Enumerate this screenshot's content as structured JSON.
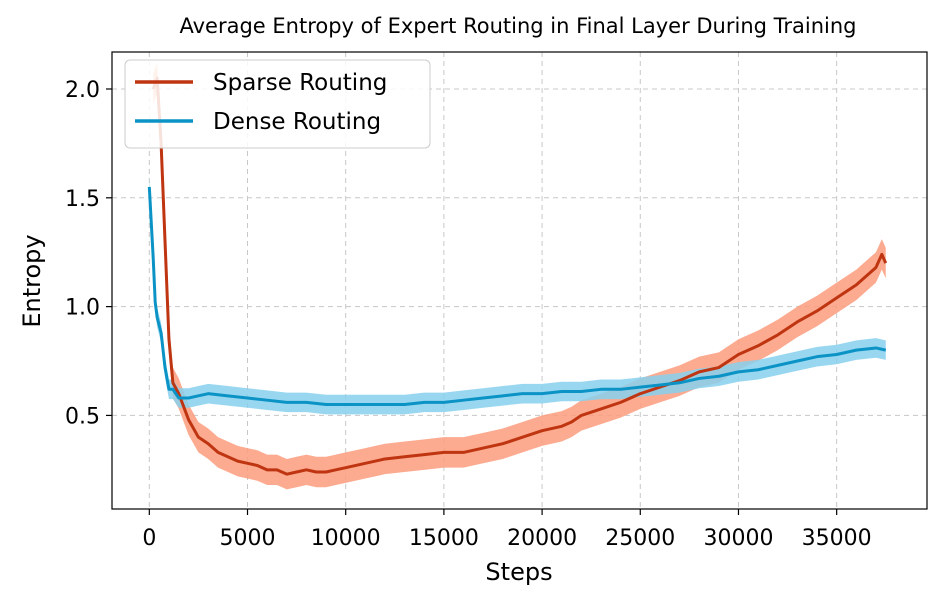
{
  "chart_data": {
    "type": "line",
    "title": "Average Entropy of Expert Routing in Final Layer During Training",
    "xlabel": "Steps",
    "ylabel": "Entropy",
    "xlim": [
      -1900,
      39600
    ],
    "ylim": [
      0.07,
      2.17
    ],
    "xticks": [
      0,
      5000,
      10000,
      15000,
      20000,
      25000,
      30000,
      35000
    ],
    "yticks": [
      0.5,
      1.0,
      1.5,
      2.0
    ],
    "xtick_labels": [
      "0",
      "5000",
      "10000",
      "15000",
      "20000",
      "25000",
      "30000",
      "35000"
    ],
    "ytick_labels": [
      "0.5",
      "1.0",
      "1.5",
      "2.0"
    ],
    "grid": true,
    "legend_position": "top-left",
    "series": [
      {
        "name": "Sparse Routing",
        "line_color": "#bf3511",
        "band_color": "#fc9c7c",
        "x": [
          200,
          400,
          600,
          800,
          1000,
          1200,
          1500,
          2000,
          2500,
          3000,
          3500,
          4000,
          4500,
          5000,
          5500,
          6000,
          6500,
          7000,
          7500,
          8000,
          8500,
          9000,
          9500,
          10000,
          11000,
          12000,
          13000,
          14000,
          15000,
          16000,
          17000,
          18000,
          19000,
          20000,
          21000,
          21500,
          22000,
          23000,
          24000,
          25000,
          26000,
          27000,
          28000,
          29000,
          30000,
          31000,
          32000,
          33000,
          34000,
          35000,
          36000,
          37000,
          37300,
          37500
        ],
        "y": [
          2.0,
          2.05,
          1.75,
          1.3,
          0.85,
          0.65,
          0.6,
          0.48,
          0.4,
          0.37,
          0.33,
          0.31,
          0.29,
          0.28,
          0.27,
          0.25,
          0.25,
          0.23,
          0.24,
          0.25,
          0.24,
          0.24,
          0.25,
          0.26,
          0.28,
          0.3,
          0.31,
          0.32,
          0.33,
          0.33,
          0.35,
          0.37,
          0.4,
          0.43,
          0.45,
          0.47,
          0.5,
          0.53,
          0.56,
          0.6,
          0.63,
          0.66,
          0.7,
          0.72,
          0.78,
          0.82,
          0.87,
          0.93,
          0.98,
          1.04,
          1.1,
          1.18,
          1.24,
          1.2
        ],
        "band": 0.07
      },
      {
        "name": "Dense Routing",
        "line_color": "#0b93c6",
        "band_color": "#87d0ee",
        "x": [
          0,
          200,
          300,
          400,
          600,
          800,
          1000,
          1200,
          1500,
          2000,
          2500,
          3000,
          4000,
          5000,
          6000,
          7000,
          8000,
          9000,
          10000,
          11000,
          12000,
          13000,
          14000,
          15000,
          16000,
          17000,
          18000,
          19000,
          20000,
          21000,
          22000,
          23000,
          24000,
          25000,
          26000,
          27000,
          28000,
          29000,
          30000,
          31000,
          32000,
          33000,
          34000,
          35000,
          36000,
          37000,
          37500
        ],
        "y": [
          1.55,
          1.22,
          1.02,
          0.95,
          0.88,
          0.72,
          0.62,
          0.62,
          0.58,
          0.58,
          0.59,
          0.6,
          0.59,
          0.58,
          0.57,
          0.56,
          0.56,
          0.55,
          0.55,
          0.55,
          0.55,
          0.55,
          0.56,
          0.56,
          0.57,
          0.58,
          0.59,
          0.6,
          0.6,
          0.61,
          0.61,
          0.62,
          0.62,
          0.63,
          0.64,
          0.65,
          0.67,
          0.68,
          0.7,
          0.71,
          0.73,
          0.75,
          0.77,
          0.78,
          0.8,
          0.81,
          0.8
        ],
        "band": 0.045
      }
    ]
  }
}
